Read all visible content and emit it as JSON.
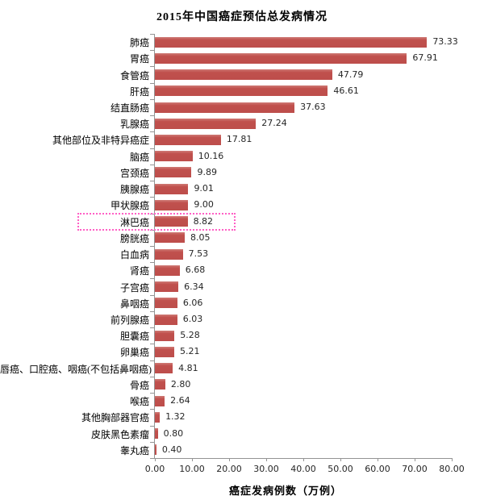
{
  "chart_data": {
    "type": "bar",
    "orientation": "horizontal",
    "title": "2015年中国癌症预估总发病情况",
    "xlabel": "癌症发病例数（万例）",
    "categories": [
      "肺癌",
      "胃癌",
      "食管癌",
      "肝癌",
      "结直肠癌",
      "乳腺癌",
      "其他部位及非特异癌症",
      "脑癌",
      "宫颈癌",
      "胰腺癌",
      "甲状腺癌",
      "淋巴癌",
      "膀胱癌",
      "白血病",
      "肾癌",
      "子宫癌",
      "鼻咽癌",
      "前列腺癌",
      "胆囊癌",
      "卵巢癌",
      "唇癌、口腔癌、咽癌(不包括鼻咽癌)",
      "骨癌",
      "喉癌",
      "其他胸部器官癌",
      "皮肤黑色素瘤",
      "睾丸癌"
    ],
    "values": [
      73.33,
      67.91,
      47.79,
      46.61,
      37.63,
      27.24,
      17.81,
      10.16,
      9.89,
      9.01,
      9.0,
      8.82,
      8.05,
      7.53,
      6.68,
      6.34,
      6.06,
      6.03,
      5.28,
      5.21,
      4.81,
      2.8,
      2.64,
      1.32,
      0.8,
      0.4
    ],
    "value_labels": [
      "73.33",
      "67.91",
      "47.79",
      "46.61",
      "37.63",
      "27.24",
      "17.81",
      "10.16",
      "9.89",
      "9.01",
      "9.00",
      "8.82",
      "8.05",
      "7.53",
      "6.68",
      "6.34",
      "6.06",
      "6.03",
      "5.28",
      "5.21",
      "4.81",
      "2.80",
      "2.64",
      "1.32",
      "0.80",
      "0.40"
    ],
    "x_ticks": [
      "0.00",
      "10.00",
      "20.00",
      "30.00",
      "40.00",
      "50.00",
      "60.00",
      "70.00",
      "80.00"
    ],
    "xlim": [
      0,
      80
    ],
    "grid": false,
    "legend": false,
    "bar_color": "#c0504d",
    "axis_color": "#949494",
    "highlight": {
      "category": "淋巴癌",
      "value": 8.82,
      "index": 11,
      "box_color": "#ff5fc5",
      "box_style": "dotted"
    }
  }
}
